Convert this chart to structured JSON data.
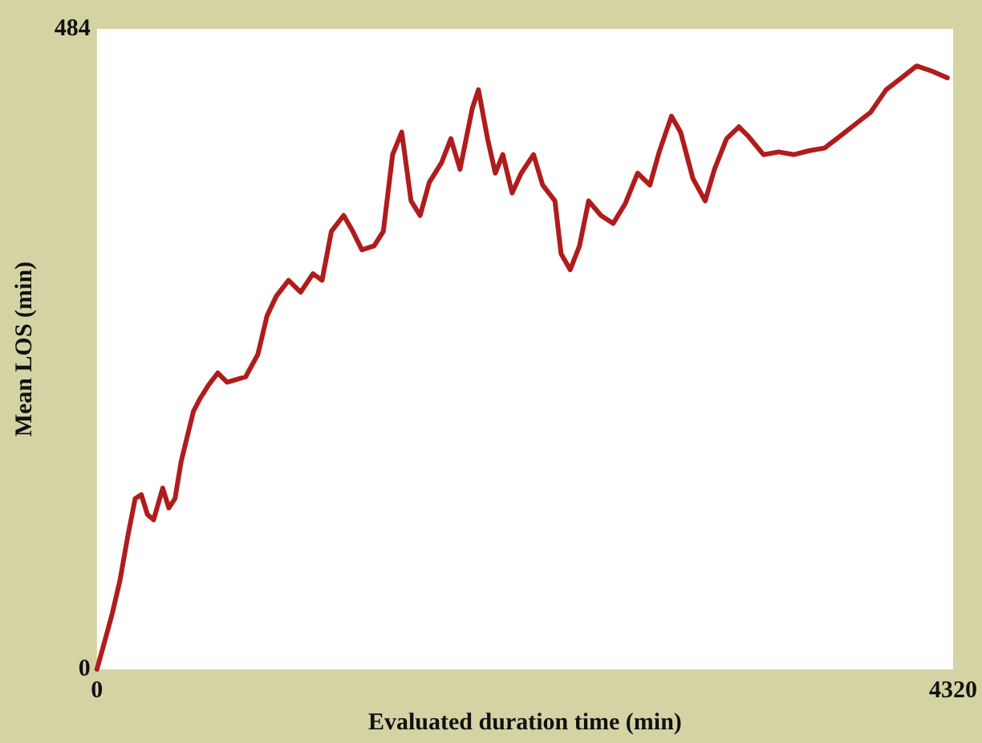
{
  "chart_data": {
    "type": "line",
    "xlabel": "Evaluated duration time (min)",
    "ylabel": "Mean LOS (min)",
    "xlim": [
      0,
      4320
    ],
    "ylim": [
      0,
      484
    ],
    "xticks": [
      0,
      4320
    ],
    "yticks": [
      0,
      484
    ],
    "grid": false,
    "marker": "none",
    "line_style": "solid",
    "series": [
      {
        "color": "#b01c1c",
        "x": [
          0,
          39,
          77,
          116,
          155,
          193,
          224,
          255,
          286,
          332,
          363,
          394,
          425,
          487,
          518,
          564,
          610,
          657,
          750,
          812,
          858,
          905,
          967,
          1028,
          1090,
          1136,
          1183,
          1245,
          1291,
          1337,
          1399,
          1445,
          1492,
          1538,
          1585,
          1631,
          1677,
          1739,
          1786,
          1832,
          1894,
          1925,
          1971,
          2010,
          2048,
          2095,
          2141,
          2203,
          2249,
          2311,
          2342,
          2388,
          2435,
          2481,
          2543,
          2605,
          2666,
          2728,
          2790,
          2837,
          2899,
          2945,
          3007,
          3069,
          3116,
          3177,
          3239,
          3286,
          3363,
          3440,
          3518,
          3595,
          3672,
          3750,
          3827,
          3904,
          3982,
          4059,
          4136,
          4214,
          4291
        ],
        "values": [
          0,
          21,
          42,
          67,
          100,
          129,
          132,
          117,
          113,
          137,
          122,
          129,
          157,
          195,
          204,
          215,
          224,
          217,
          221,
          238,
          267,
          282,
          294,
          285,
          299,
          294,
          331,
          343,
          331,
          317,
          320,
          331,
          389,
          406,
          354,
          343,
          368,
          383,
          401,
          378,
          424,
          438,
          401,
          375,
          389,
          360,
          375,
          389,
          366,
          354,
          314,
          302,
          320,
          354,
          343,
          337,
          352,
          375,
          366,
          391,
          418,
          406,
          371,
          354,
          378,
          401,
          410,
          403,
          389,
          391,
          389,
          392,
          394,
          403,
          412,
          421,
          438,
          447,
          456,
          452,
          447
        ]
      }
    ]
  }
}
